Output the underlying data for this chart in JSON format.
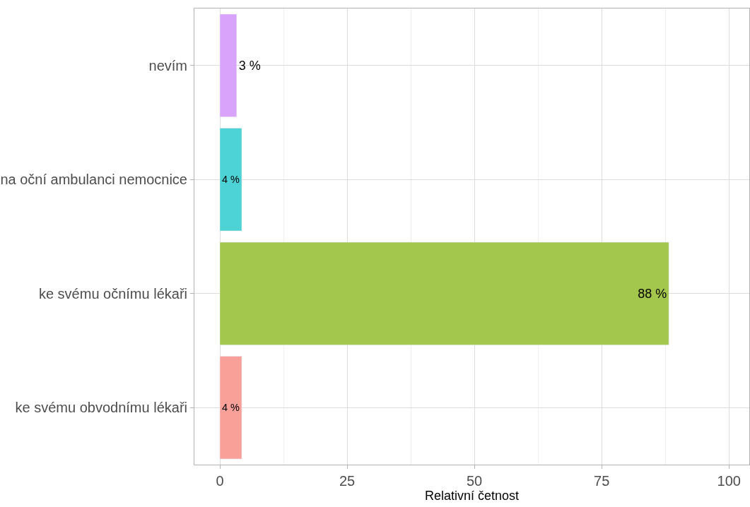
{
  "chart_data": {
    "type": "bar",
    "orientation": "horizontal",
    "xlabel": "Relativní četnost",
    "categories": [
      "nevím",
      "na oční ambulanci nemocnice",
      "ke svému očnímu lékaři",
      "ke svému obvodnímu lékaři"
    ],
    "values": [
      3.3,
      4.3,
      88.2,
      4.3
    ],
    "value_labels": [
      "3 %",
      "4 %",
      "88 %",
      "4 %"
    ],
    "colors": [
      "#d9a3fb",
      "#4dd2d6",
      "#a3c64d",
      "#f9a098"
    ],
    "xlim": [
      -5,
      104
    ],
    "xticks": [
      0,
      25,
      50,
      75,
      100
    ],
    "grid": true,
    "legend": false
  }
}
